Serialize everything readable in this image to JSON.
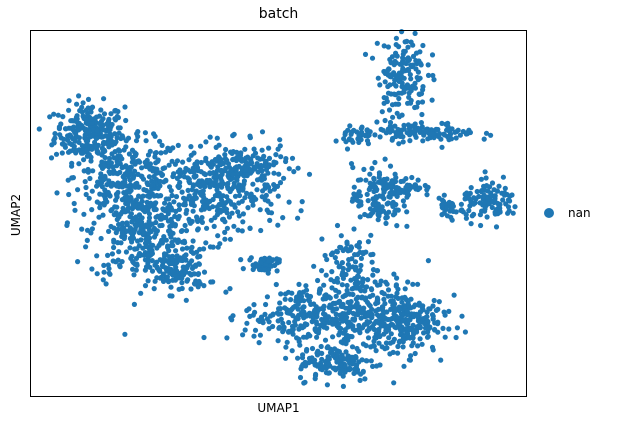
{
  "chart_data": {
    "type": "scatter",
    "title": "batch",
    "xlabel": "UMAP1",
    "ylabel": "UMAP2",
    "xlim": [
      0,
      100
    ],
    "ylim": [
      0,
      100
    ],
    "grid": false,
    "legend_position": "right",
    "ticks": "none",
    "series": [
      {
        "name": "nan",
        "color": "#1f77b4",
        "clusters": [
          {
            "cx": 12,
            "cy": 72,
            "sx": 3.5,
            "sy": 4.0,
            "n": 260
          },
          {
            "cx": 20,
            "cy": 60,
            "sx": 5.5,
            "sy": 5.0,
            "n": 240
          },
          {
            "cx": 22,
            "cy": 45,
            "sx": 5.0,
            "sy": 7.0,
            "n": 320
          },
          {
            "cx": 30,
            "cy": 34,
            "sx": 3.0,
            "sy": 3.0,
            "n": 120
          },
          {
            "cx": 37,
            "cy": 55,
            "sx": 6.5,
            "sy": 6.0,
            "n": 300
          },
          {
            "cx": 43,
            "cy": 62,
            "sx": 4.5,
            "sy": 3.5,
            "n": 160
          },
          {
            "cx": 47,
            "cy": 36,
            "sx": 1.5,
            "sy": 1.0,
            "n": 40
          },
          {
            "cx": 55,
            "cy": 22,
            "sx": 6.0,
            "sy": 4.0,
            "n": 230
          },
          {
            "cx": 62,
            "cy": 9,
            "sx": 4.0,
            "sy": 2.5,
            "n": 130
          },
          {
            "cx": 70,
            "cy": 22,
            "sx": 6.5,
            "sy": 5.5,
            "n": 290
          },
          {
            "cx": 76,
            "cy": 20,
            "sx": 3.0,
            "sy": 4.0,
            "n": 110
          },
          {
            "cx": 64,
            "cy": 36,
            "sx": 3.0,
            "sy": 5.0,
            "n": 90
          },
          {
            "cx": 70,
            "cy": 54,
            "sx": 2.5,
            "sy": 4.5,
            "n": 110
          },
          {
            "cx": 75,
            "cy": 57,
            "sx": 3.0,
            "sy": 1.2,
            "n": 70
          },
          {
            "cx": 75,
            "cy": 88,
            "sx": 2.5,
            "sy": 6.0,
            "n": 150
          },
          {
            "cx": 80,
            "cy": 72,
            "sx": 5.0,
            "sy": 1.3,
            "n": 110
          },
          {
            "cx": 66,
            "cy": 71,
            "sx": 1.5,
            "sy": 1.5,
            "n": 40
          },
          {
            "cx": 93,
            "cy": 53,
            "sx": 3.0,
            "sy": 2.5,
            "n": 110
          },
          {
            "cx": 84,
            "cy": 51,
            "sx": 1.2,
            "sy": 1.5,
            "n": 30
          },
          {
            "cx": 48,
            "cy": 37,
            "sx": 1.0,
            "sy": 0.6,
            "n": 15
          }
        ]
      }
    ]
  }
}
